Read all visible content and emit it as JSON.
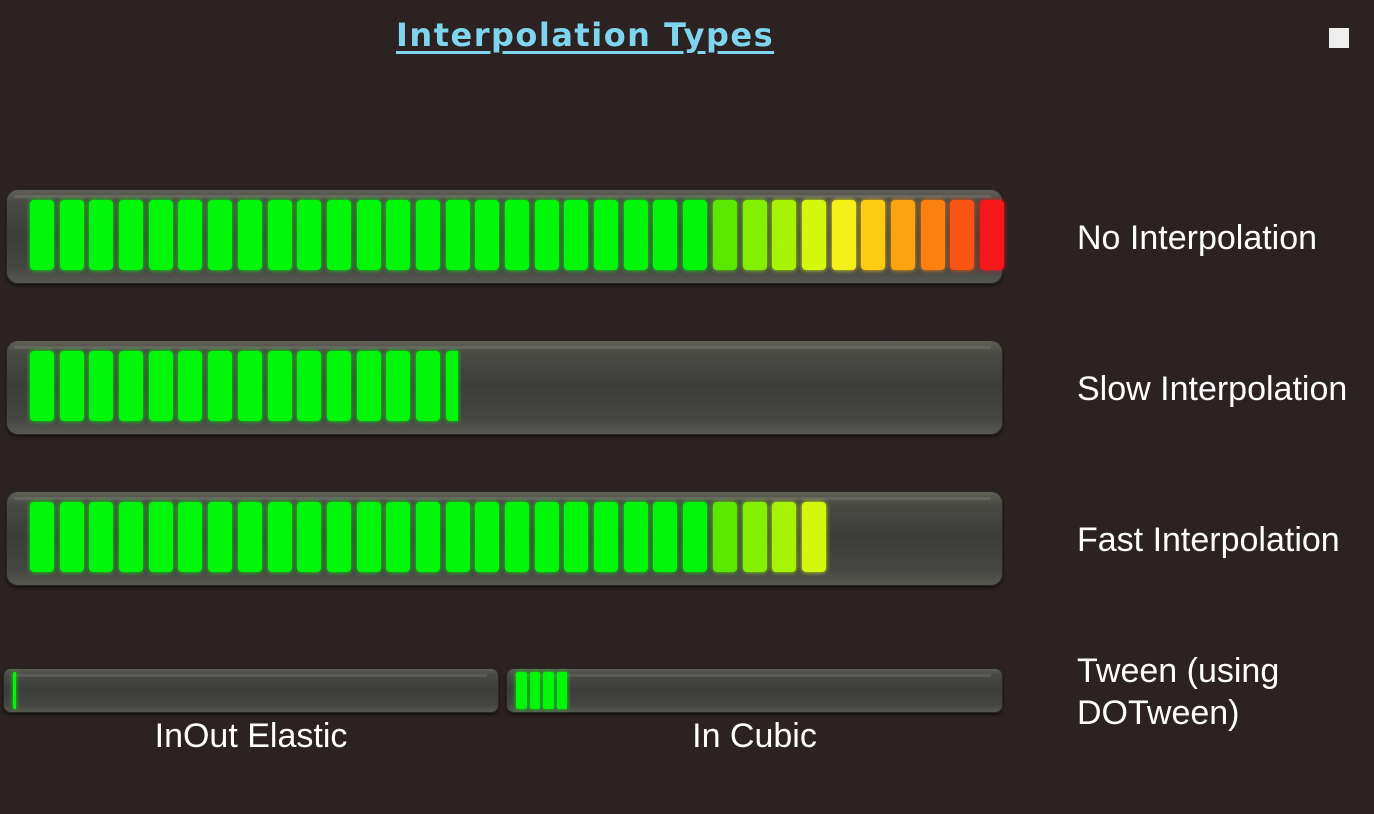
{
  "title": "Interpolation Types",
  "colors": {
    "background": "#2d2222",
    "title": "#7fd4ee",
    "text": "#ffffff",
    "segment_gradient": [
      "#00f70a",
      "#00f70a",
      "#00f70a",
      "#00f70a",
      "#00f70a",
      "#00f70a",
      "#00f70a",
      "#00f70a",
      "#00f70a",
      "#00f70a",
      "#00f70a",
      "#00f70a",
      "#00f70a",
      "#00f70a",
      "#00f70a",
      "#00f70a",
      "#00f70a",
      "#00f70a",
      "#00f70a",
      "#00f70a",
      "#00f70a",
      "#00f70a",
      "#00f70a",
      "#5ae800",
      "#82f000",
      "#a8f400",
      "#d4f70e",
      "#f6f01a",
      "#ffcc11",
      "#fca310",
      "#fb800f",
      "#fa5512",
      "#f7161a"
    ]
  },
  "meters": [
    {
      "label": "No Interpolation",
      "segments_total": 33,
      "fill": 1.0
    },
    {
      "label": "Slow Interpolation",
      "segments_total": 33,
      "fill": 0.4394
    },
    {
      "label": "Fast Interpolation",
      "segments_total": 33,
      "fill": 0.8182
    }
  ],
  "tween": {
    "label": "Tween (using DOTween)",
    "meters": [
      {
        "caption": "InOut Elastic",
        "segments_total": 33,
        "fill": 0.008
      },
      {
        "caption": "In Cubic",
        "segments_total": 33,
        "fill": 0.121
      }
    ]
  },
  "stop_icon": "stop-square-icon"
}
